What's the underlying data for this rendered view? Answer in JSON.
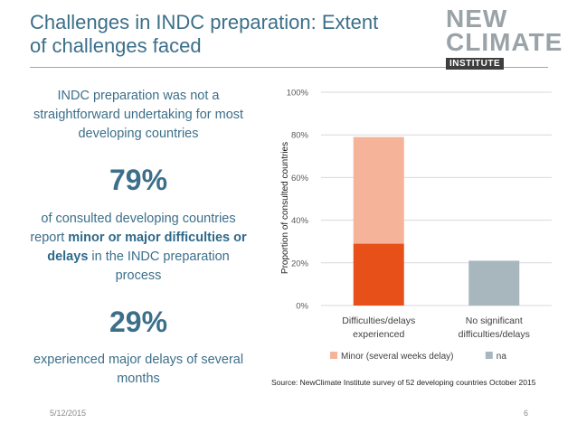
{
  "slide": {
    "title_line1": "Challenges in INDC preparation: Extent",
    "title_line2": "of challenges faced",
    "date": "5/12/2015",
    "page_number": "6"
  },
  "logo": {
    "line1": "NEW",
    "line2": "CLIMATE",
    "line3": "INSTITUTE"
  },
  "left_panel": {
    "intro": "INDC preparation was not a straightforward undertaking for most developing countries",
    "stat1": "79%",
    "stat1_text_a": "of consulted developing countries report ",
    "stat1_text_bold": "minor or major difficulties or delays",
    "stat1_text_b": " in the INDC preparation process",
    "stat2": "29%",
    "stat2_text": "experienced major delays of several months"
  },
  "chart_data": {
    "type": "bar",
    "stacked": true,
    "categories": [
      "Difficulties/delays experienced",
      "No significant difficulties/delays"
    ],
    "category_lines": [
      [
        "Difficulties/delays",
        "experienced"
      ],
      [
        "No significant",
        "difficulties/delays"
      ]
    ],
    "series": [
      {
        "name": "",
        "values": [
          29,
          0
        ],
        "color": "#e8501a"
      },
      {
        "name": "Minor (several weeks delay)",
        "values": [
          50,
          0
        ],
        "color": "#f5b49a"
      },
      {
        "name": "na",
        "values": [
          0,
          21
        ],
        "color": "#a8b7be"
      }
    ],
    "ylabel": "Proportion of consulted countries",
    "ylim": [
      0,
      100
    ],
    "yticks": [
      0,
      20,
      40,
      60,
      80,
      100
    ],
    "ytick_labels": [
      "0%",
      "20%",
      "40%",
      "60%",
      "80%",
      "100%"
    ],
    "grid": true,
    "legend_position": "bottom",
    "legend": [
      {
        "label": "Minor (several weeks delay)",
        "color": "#f5b49a"
      },
      {
        "label": "na",
        "color": "#a8b7be"
      }
    ],
    "source": "Source: NewClimate Institute survey of 52 developing countries October 2015"
  }
}
